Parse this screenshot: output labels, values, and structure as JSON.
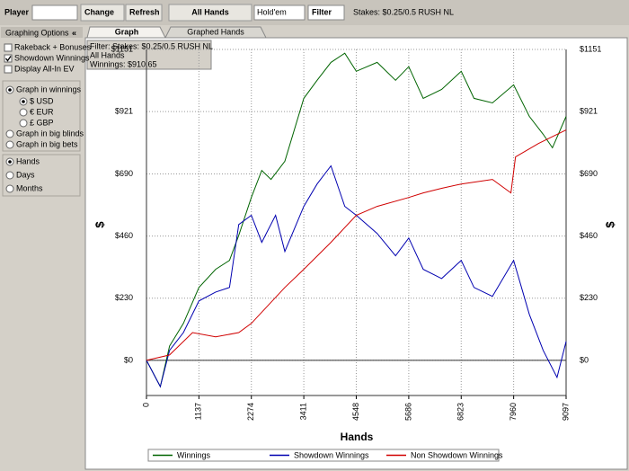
{
  "toolbar": {
    "player": "Player",
    "change": "Change",
    "refresh": "Refresh",
    "all_hands": "All Hands",
    "game": "Hold'em",
    "filter": "Filter",
    "stakes": "Stakes: $0.25/0.5 RUSH NL"
  },
  "tabs": [
    "Graph",
    "Graphed Hands"
  ],
  "sidebar": {
    "title": "Graphing Options",
    "collapse": "«",
    "options": [
      {
        "label": "Rakeback + Bonuses",
        "checked": false
      },
      {
        "label": "Showdown Winnings",
        "checked": true
      },
      {
        "label": "Display All-In EV",
        "checked": false
      }
    ],
    "graph_in": [
      {
        "label": "Graph in winnings",
        "checked": true
      },
      {
        "label": "Graph in big blinds",
        "checked": false
      },
      {
        "label": "Graph in big bets",
        "checked": false
      }
    ],
    "currency": [
      {
        "label": "$ USD",
        "checked": true
      },
      {
        "label": "€ EUR",
        "checked": false
      },
      {
        "label": "£ GBP",
        "checked": false
      }
    ],
    "x_axis": [
      {
        "label": "Hands",
        "checked": true
      },
      {
        "label": "Days",
        "checked": false
      },
      {
        "label": "Months",
        "checked": false
      }
    ]
  },
  "info_box": [
    "Filter: Stakes: $0.25/0.5 RUSH NL",
    "All Hands",
    "Winnings: $910.65"
  ],
  "chart_data": {
    "type": "line",
    "x_label": "Hands",
    "y_label": "$",
    "xlim": [
      0,
      9097
    ],
    "xticks": [
      0,
      1137,
      2274,
      3411,
      4548,
      5686,
      6823,
      7960,
      9097
    ],
    "ylim": [
      -130,
      1151
    ],
    "yticks": [
      {
        "value": 0,
        "label": "$0"
      },
      {
        "value": 230,
        "label": "$230"
      },
      {
        "value": 460,
        "label": "$460"
      },
      {
        "value": 690,
        "label": "$690"
      },
      {
        "value": 921,
        "label": "$921"
      },
      {
        "value": 1151,
        "label": "$1151"
      }
    ],
    "grid": true,
    "legend": "bottom",
    "series": [
      {
        "name": "Winnings",
        "color": "#006400",
        "x": [
          0,
          300,
          500,
          800,
          1137,
          1500,
          1800,
          2000,
          2274,
          2500,
          2700,
          3000,
          3411,
          3700,
          4000,
          4300,
          4548,
          5000,
          5400,
          5686,
          6000,
          6400,
          6823,
          7100,
          7500,
          7960,
          8300,
          8600,
          8800,
          9097
        ],
        "values": [
          0,
          -97,
          53,
          137,
          270,
          337,
          370,
          463,
          603,
          703,
          670,
          737,
          970,
          1037,
          1103,
          1137,
          1070,
          1103,
          1037,
          1087,
          970,
          1003,
          1070,
          970,
          953,
          1020,
          903,
          837,
          787,
          903
        ]
      },
      {
        "name": "Showdown Winnings",
        "color": "#0000b0",
        "x": [
          0,
          300,
          500,
          800,
          1137,
          1500,
          1800,
          2000,
          2274,
          2500,
          2800,
          3000,
          3411,
          3700,
          4000,
          4300,
          4548,
          5000,
          5400,
          5686,
          6000,
          6400,
          6823,
          7100,
          7500,
          7960,
          8300,
          8600,
          8900,
          9097
        ],
        "values": [
          0,
          -97,
          37,
          103,
          220,
          253,
          270,
          503,
          537,
          437,
          537,
          403,
          570,
          653,
          720,
          570,
          537,
          470,
          387,
          453,
          337,
          303,
          370,
          270,
          237,
          370,
          170,
          37,
          -63,
          70
        ]
      },
      {
        "name": "Non Showdown Winnings",
        "color": "#d00000",
        "x": [
          0,
          500,
          1000,
          1500,
          2000,
          2274,
          3000,
          3411,
          4000,
          4548,
          5000,
          5686,
          6000,
          6400,
          6823,
          7500,
          7900,
          8000,
          8500,
          9097
        ],
        "values": [
          0,
          20,
          103,
          87,
          103,
          137,
          270,
          337,
          437,
          537,
          570,
          603,
          620,
          637,
          653,
          670,
          620,
          753,
          803,
          853
        ]
      }
    ]
  }
}
